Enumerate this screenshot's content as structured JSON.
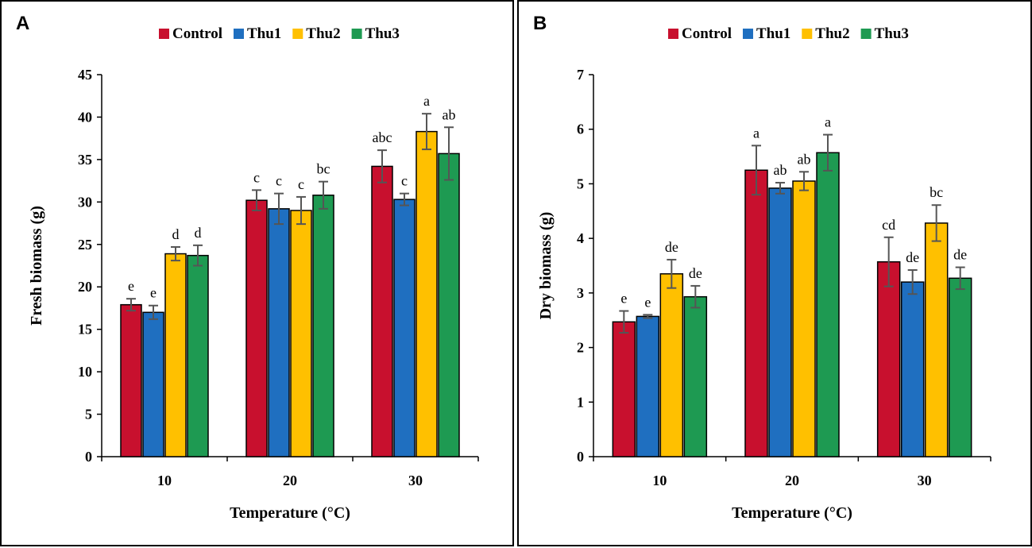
{
  "chart_data": [
    {
      "type": "bar",
      "panel_label": "A",
      "categories": [
        "10",
        "20",
        "30"
      ],
      "series": [
        {
          "name": "Control",
          "color": "#c8102e",
          "values": [
            17.9,
            30.2,
            34.2
          ],
          "errors": [
            0.7,
            1.2,
            1.9
          ],
          "labels": [
            "e",
            "c",
            "abc"
          ]
        },
        {
          "name": "Thu1",
          "color": "#1f6fc0",
          "values": [
            17.0,
            29.2,
            30.3
          ],
          "errors": [
            0.8,
            1.8,
            0.7
          ],
          "labels": [
            "e",
            "c",
            "c"
          ]
        },
        {
          "name": "Thu2",
          "color": "#ffc000",
          "values": [
            23.9,
            29.0,
            38.3
          ],
          "errors": [
            0.8,
            1.6,
            2.1
          ],
          "labels": [
            "d",
            "c",
            "a"
          ]
        },
        {
          "name": "Thu3",
          "color": "#1e9a52",
          "values": [
            23.7,
            30.8,
            35.7
          ],
          "errors": [
            1.2,
            1.6,
            3.1
          ],
          "labels": [
            "d",
            "bc",
            "ab"
          ]
        }
      ],
      "ylabel": "Fresh biomass (g)",
      "xlabel": "Temperature (°C)",
      "ylim": [
        0,
        45
      ],
      "yticks": [
        "0",
        "5",
        "10",
        "15",
        "20",
        "25",
        "30",
        "35",
        "40",
        "45"
      ],
      "legend_position": "top"
    },
    {
      "type": "bar",
      "panel_label": "B",
      "categories": [
        "10",
        "20",
        "30"
      ],
      "series": [
        {
          "name": "Control",
          "color": "#c8102e",
          "values": [
            2.47,
            5.25,
            3.57
          ],
          "errors": [
            0.2,
            0.45,
            0.45
          ],
          "labels": [
            "e",
            "a",
            "cd"
          ]
        },
        {
          "name": "Thu1",
          "color": "#1f6fc0",
          "values": [
            2.57,
            4.92,
            3.2
          ],
          "errors": [
            0.03,
            0.1,
            0.22
          ],
          "labels": [
            "e",
            "ab",
            "de"
          ]
        },
        {
          "name": "Thu2",
          "color": "#ffc000",
          "values": [
            3.35,
            5.05,
            4.28
          ],
          "errors": [
            0.26,
            0.17,
            0.33
          ],
          "labels": [
            "de",
            "ab",
            "bc"
          ]
        },
        {
          "name": "Thu3",
          "color": "#1e9a52",
          "values": [
            2.93,
            5.57,
            3.27
          ],
          "errors": [
            0.2,
            0.33,
            0.2
          ],
          "labels": [
            "de",
            "a",
            "de"
          ]
        }
      ],
      "ylabel": "Dry biomass (g)",
      "xlabel": "Temperature (°C)",
      "ylim": [
        0,
        7
      ],
      "yticks": [
        "0",
        "1",
        "2",
        "3",
        "4",
        "5",
        "6",
        "7"
      ],
      "legend_position": "top"
    }
  ]
}
